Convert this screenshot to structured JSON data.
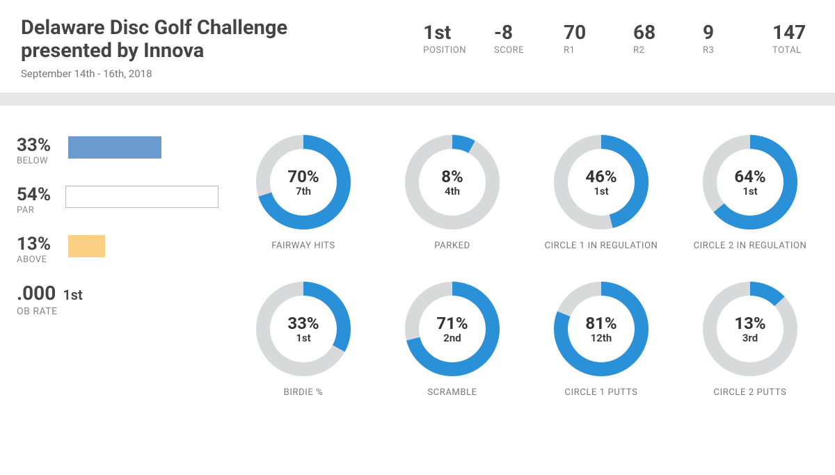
{
  "header": {
    "title": "Delaware Disc Golf Challenge presented by Innova",
    "date": "September 14th - 16th, 2018"
  },
  "summary": [
    {
      "value": "1st",
      "label": "POSITION"
    },
    {
      "value": "-8",
      "label": "SCORE"
    },
    {
      "value": "70",
      "label": "R1"
    },
    {
      "value": "68",
      "label": "R2"
    },
    {
      "value": "9",
      "label": "R3"
    },
    {
      "value": "147",
      "label": "TOTAL"
    }
  ],
  "par_bars": {
    "max": 54,
    "items": [
      {
        "value": "33%",
        "label": "BELOW",
        "width_pct": 33,
        "fill": "#6b9ace",
        "border": "#6b9ace"
      },
      {
        "value": "54%",
        "label": "PAR",
        "width_pct": 54,
        "fill": "#ffffff",
        "border": "#bbbbbb"
      },
      {
        "value": "13%",
        "label": "ABOVE",
        "width_pct": 13,
        "fill": "#fcd085",
        "border": "#fcd085"
      }
    ]
  },
  "ob": {
    "value": ".000",
    "rank": "1st",
    "label": "OB RATE"
  },
  "donut_style": {
    "primary": "#2a91d8",
    "track": "#d7d9db",
    "stroke_width": 20,
    "radius": 58
  },
  "donuts": [
    {
      "pct": 70,
      "pct_text": "70%",
      "rank": "7th",
      "label": "FAIRWAY HITS"
    },
    {
      "pct": 8,
      "pct_text": "8%",
      "rank": "4th",
      "label": "PARKED"
    },
    {
      "pct": 46,
      "pct_text": "46%",
      "rank": "1st",
      "label": "CIRCLE 1 IN REGULATION"
    },
    {
      "pct": 64,
      "pct_text": "64%",
      "rank": "1st",
      "label": "CIRCLE 2 IN REGULATION"
    },
    {
      "pct": 33,
      "pct_text": "33%",
      "rank": "1st",
      "label": "BIRDIE %"
    },
    {
      "pct": 71,
      "pct_text": "71%",
      "rank": "2nd",
      "label": "SCRAMBLE"
    },
    {
      "pct": 81,
      "pct_text": "81%",
      "rank": "12th",
      "label": "CIRCLE 1 PUTTS"
    },
    {
      "pct": 13,
      "pct_text": "13%",
      "rank": "3rd",
      "label": "CIRCLE 2 PUTTS"
    }
  ]
}
